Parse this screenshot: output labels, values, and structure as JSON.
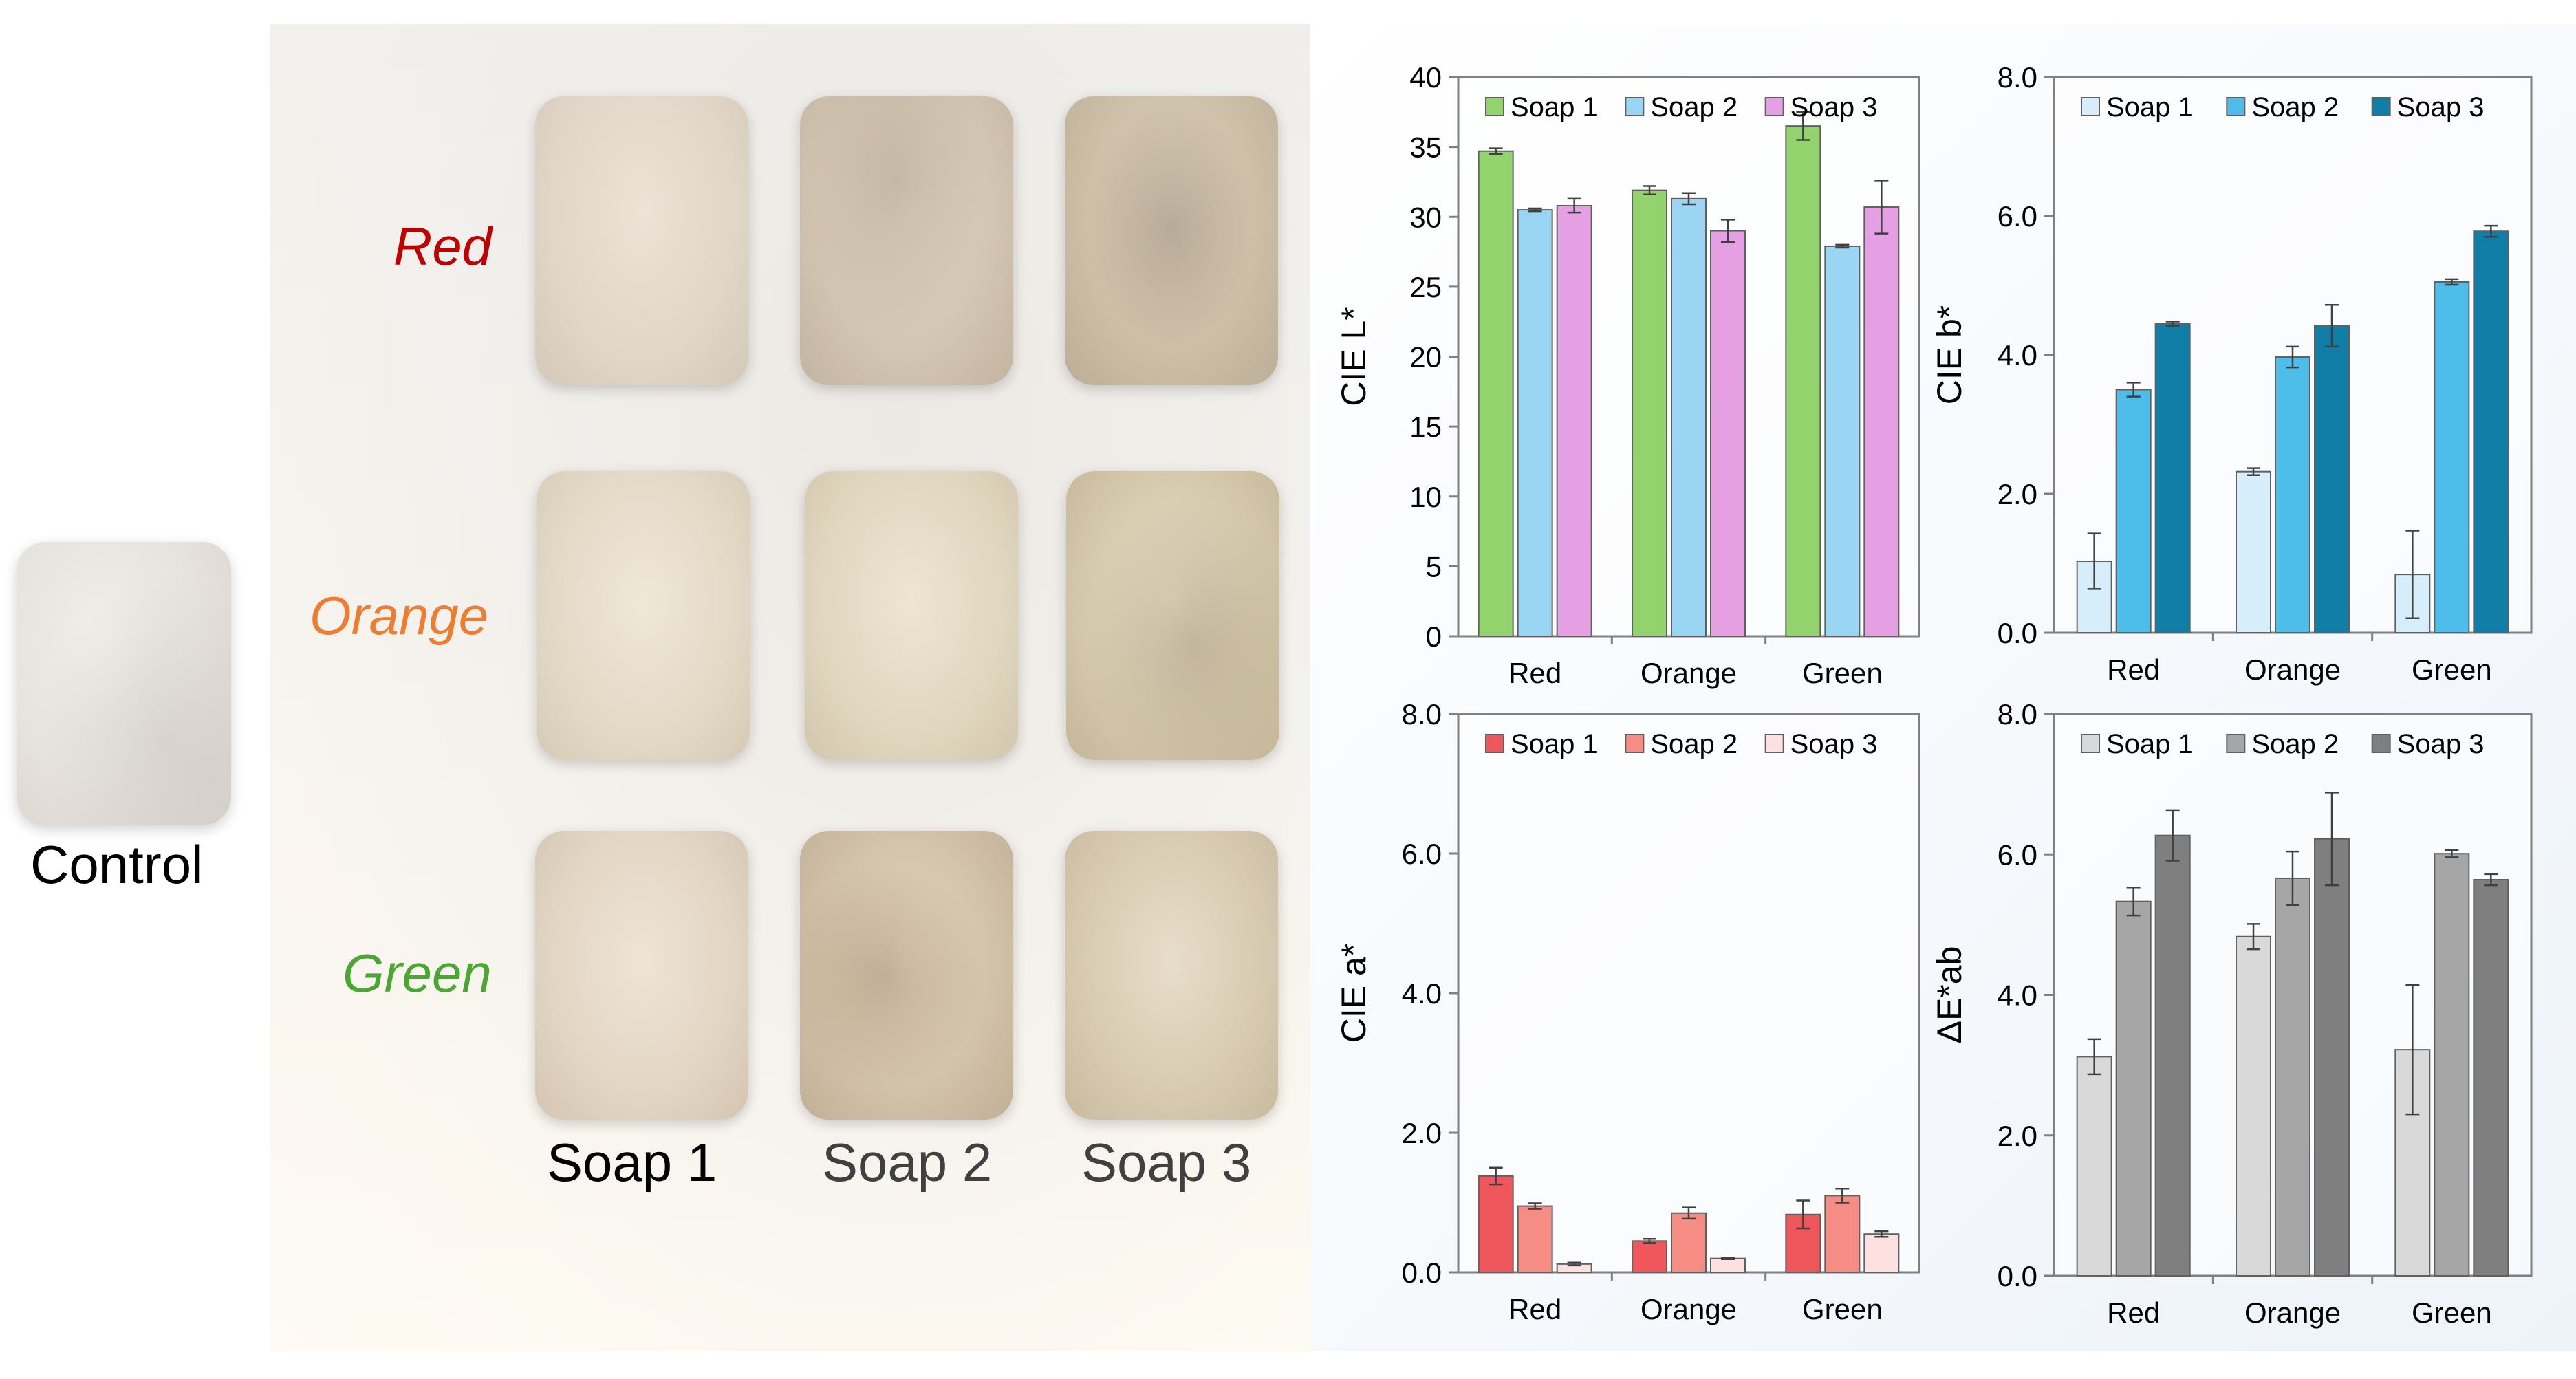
{
  "photos": {
    "control_label": "Control",
    "row_labels": [
      {
        "text": "Red",
        "color": "#c00000"
      },
      {
        "text": "Orange",
        "color": "#ed7d31"
      },
      {
        "text": "Green",
        "color": "#4aa832"
      }
    ],
    "column_labels": [
      {
        "text": "Soap 1",
        "color": "#000000"
      },
      {
        "text": "Soap 2",
        "color": "#404040"
      },
      {
        "text": "Soap 3",
        "color": "#404040"
      }
    ]
  },
  "chart_data": [
    {
      "type": "bar",
      "ylabel": "CIE L*",
      "categories": [
        "Red",
        "Orange",
        "Green"
      ],
      "ylim": [
        0,
        40
      ],
      "yticks": [
        "0",
        "5",
        "10",
        "15",
        "20",
        "25",
        "30",
        "35",
        "40"
      ],
      "legend": "top",
      "series": [
        {
          "name": "Soap 1",
          "color": "#92d36e",
          "values": [
            34.7,
            31.9,
            36.5
          ],
          "errors": [
            0.2,
            0.3,
            1.0
          ]
        },
        {
          "name": "Soap 2",
          "color": "#9ad6f3",
          "values": [
            30.5,
            31.3,
            27.9
          ],
          "errors": [
            0.1,
            0.4,
            0.1
          ]
        },
        {
          "name": "Soap 3",
          "color": "#e5a0e3",
          "values": [
            30.8,
            29.0,
            30.7
          ],
          "errors": [
            0.5,
            0.8,
            1.9
          ]
        }
      ]
    },
    {
      "type": "bar",
      "ylabel": "CIE b*",
      "categories": [
        "Red",
        "Orange",
        "Green"
      ],
      "ylim": [
        0,
        8
      ],
      "yticks": [
        "0.0",
        "2.0",
        "4.0",
        "6.0",
        "8.0"
      ],
      "legend": "top",
      "series": [
        {
          "name": "Soap 1",
          "color": "#d6eef9",
          "values": [
            1.03,
            2.32,
            0.84
          ],
          "errors": [
            0.4,
            0.05,
            0.63
          ]
        },
        {
          "name": "Soap 2",
          "color": "#4dbde9",
          "values": [
            3.5,
            3.97,
            5.05
          ],
          "errors": [
            0.1,
            0.15,
            0.04
          ]
        },
        {
          "name": "Soap 3",
          "color": "#117ea8",
          "values": [
            4.45,
            4.42,
            5.78
          ],
          "errors": [
            0.03,
            0.3,
            0.08
          ]
        }
      ]
    },
    {
      "type": "bar",
      "ylabel": "CIE a*",
      "categories": [
        "Red",
        "Orange",
        "Green"
      ],
      "ylim": [
        0,
        8
      ],
      "yticks": [
        "0.0",
        "2.0",
        "4.0",
        "6.0",
        "8.0"
      ],
      "legend": "top",
      "series": [
        {
          "name": "Soap 1",
          "color": "#f0575c",
          "values": [
            1.38,
            0.45,
            0.83
          ],
          "errors": [
            0.12,
            0.03,
            0.2
          ]
        },
        {
          "name": "Soap 2",
          "color": "#f58d85",
          "values": [
            0.95,
            0.85,
            1.1
          ],
          "errors": [
            0.04,
            0.08,
            0.1
          ]
        },
        {
          "name": "Soap 3",
          "color": "#fce1e0",
          "values": [
            0.12,
            0.2,
            0.55
          ],
          "errors": [
            0.02,
            0.01,
            0.04
          ]
        }
      ]
    },
    {
      "type": "bar",
      "ylabel": "ΔE*ab",
      "categories": [
        "Red",
        "Orange",
        "Green"
      ],
      "ylim": [
        0,
        8
      ],
      "yticks": [
        "0.0",
        "2.0",
        "4.0",
        "6.0",
        "8.0"
      ],
      "legend": "top",
      "series": [
        {
          "name": "Soap 1",
          "color": "#d9d9d9",
          "values": [
            3.12,
            4.83,
            3.22
          ],
          "errors": [
            0.25,
            0.18,
            0.92
          ]
        },
        {
          "name": "Soap 2",
          "color": "#a6a6a6",
          "values": [
            5.33,
            5.66,
            6.01
          ],
          "errors": [
            0.2,
            0.38,
            0.05
          ]
        },
        {
          "name": "Soap 3",
          "color": "#7f7f7f",
          "values": [
            6.27,
            6.22,
            5.64
          ],
          "errors": [
            0.36,
            0.66,
            0.08
          ]
        }
      ]
    }
  ]
}
